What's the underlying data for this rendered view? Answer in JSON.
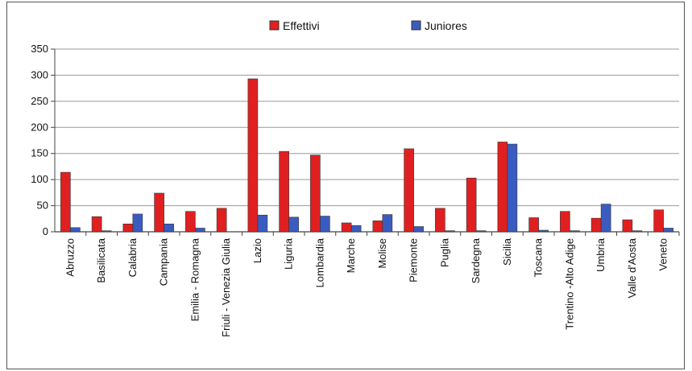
{
  "chart_data": {
    "type": "bar",
    "categories": [
      "Abruzzo",
      "Basilicata",
      "Calabria",
      "Campania",
      "Emilia - Romagna",
      "Friuli - Venezia Giulia",
      "Lazio",
      "Liguria",
      "Lombardia",
      "Marche",
      "Molise",
      "Piemonte",
      "Puglia",
      "Sardegna",
      "Sicilia",
      "Toscana",
      "Trentino -Alto Adige",
      "Umbria",
      "Valle d'Aosta",
      "Veneto"
    ],
    "series": [
      {
        "name": "Effettivi",
        "color": "#e02020",
        "values": [
          114,
          29,
          15,
          74,
          39,
          45,
          293,
          154,
          147,
          17,
          21,
          159,
          45,
          103,
          172,
          27,
          39,
          26,
          23,
          42
        ]
      },
      {
        "name": "Juniores",
        "color": "#3a5cc0",
        "values": [
          8,
          2,
          34,
          15,
          7,
          0,
          32,
          28,
          30,
          12,
          33,
          10,
          2,
          2,
          168,
          3,
          2,
          53,
          2,
          7
        ]
      }
    ],
    "ylim": [
      0,
      350
    ],
    "yticks": [
      0,
      50,
      100,
      150,
      200,
      250,
      300,
      350
    ],
    "grid": true,
    "legend_position": "top-center"
  }
}
